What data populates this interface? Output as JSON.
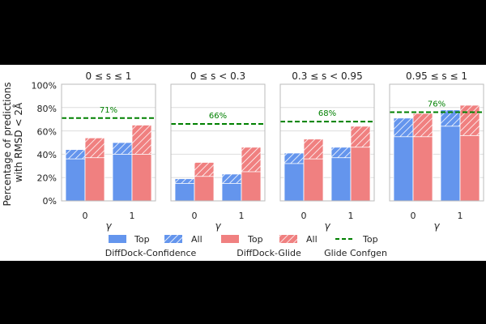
{
  "figure": {
    "ylabel_lines": [
      "Percentage of predictions",
      "with RMSD < 2Å"
    ],
    "yticks": [
      "0%",
      "20%",
      "40%",
      "60%",
      "80%",
      "100%"
    ],
    "xlabel": "γ",
    "colors": {
      "diffdock_confidence": "#6495ed",
      "diffdock_glide": "#f08080",
      "glide_confgen": "#008000",
      "grid": "#dddddd",
      "frame": "#bbbbbb"
    }
  },
  "legend": {
    "entries": [
      "Top",
      "All",
      "Top",
      "All",
      "Top"
    ],
    "groups": [
      "DiffDock-Confidence",
      "DiffDock-Glide",
      "Glide Confgen"
    ]
  },
  "chart_data": [
    {
      "type": "bar",
      "title": "0 ≤ s ≤ 1",
      "categories": [
        "0",
        "1"
      ],
      "xlabel": "γ",
      "ylim": [
        0,
        100
      ],
      "grid": true,
      "series": [
        {
          "name": "DiffDock-Confidence Top",
          "values": [
            36,
            40
          ]
        },
        {
          "name": "DiffDock-Confidence All",
          "values": [
            44,
            50
          ]
        },
        {
          "name": "DiffDock-Glide Top",
          "values": [
            37,
            40
          ]
        },
        {
          "name": "DiffDock-Glide All",
          "values": [
            54,
            65
          ]
        }
      ],
      "reference_line": {
        "name": "Glide Confgen Top",
        "value": 71,
        "label": "71%"
      }
    },
    {
      "type": "bar",
      "title": "0 ≤ s < 0.3",
      "categories": [
        "0",
        "1"
      ],
      "xlabel": "γ",
      "ylim": [
        0,
        100
      ],
      "grid": true,
      "series": [
        {
          "name": "DiffDock-Confidence Top",
          "values": [
            15,
            15
          ]
        },
        {
          "name": "DiffDock-Confidence All",
          "values": [
            19,
            23
          ]
        },
        {
          "name": "DiffDock-Glide Top",
          "values": [
            21,
            25
          ]
        },
        {
          "name": "DiffDock-Glide All",
          "values": [
            33,
            46
          ]
        }
      ],
      "reference_line": {
        "name": "Glide Confgen Top",
        "value": 66,
        "label": "66%"
      }
    },
    {
      "type": "bar",
      "title": "0.3 ≤ s < 0.95",
      "categories": [
        "0",
        "1"
      ],
      "xlabel": "γ",
      "ylim": [
        0,
        100
      ],
      "grid": true,
      "series": [
        {
          "name": "DiffDock-Confidence Top",
          "values": [
            32,
            37
          ]
        },
        {
          "name": "DiffDock-Confidence All",
          "values": [
            41,
            46
          ]
        },
        {
          "name": "DiffDock-Glide Top",
          "values": [
            36,
            46
          ]
        },
        {
          "name": "DiffDock-Glide All",
          "values": [
            53,
            64
          ]
        }
      ],
      "reference_line": {
        "name": "Glide Confgen Top",
        "value": 68,
        "label": "68%"
      }
    },
    {
      "type": "bar",
      "title": "0.95 ≤ s ≤ 1",
      "categories": [
        "0",
        "1"
      ],
      "xlabel": "γ",
      "ylim": [
        0,
        100
      ],
      "grid": true,
      "series": [
        {
          "name": "DiffDock-Confidence Top",
          "values": [
            55,
            64
          ]
        },
        {
          "name": "DiffDock-Confidence All",
          "values": [
            71,
            78
          ]
        },
        {
          "name": "DiffDock-Glide Top",
          "values": [
            55,
            56
          ]
        },
        {
          "name": "DiffDock-Glide All",
          "values": [
            75,
            82
          ]
        }
      ],
      "reference_line": {
        "name": "Glide Confgen Top",
        "value": 76,
        "label": "76%"
      }
    }
  ]
}
